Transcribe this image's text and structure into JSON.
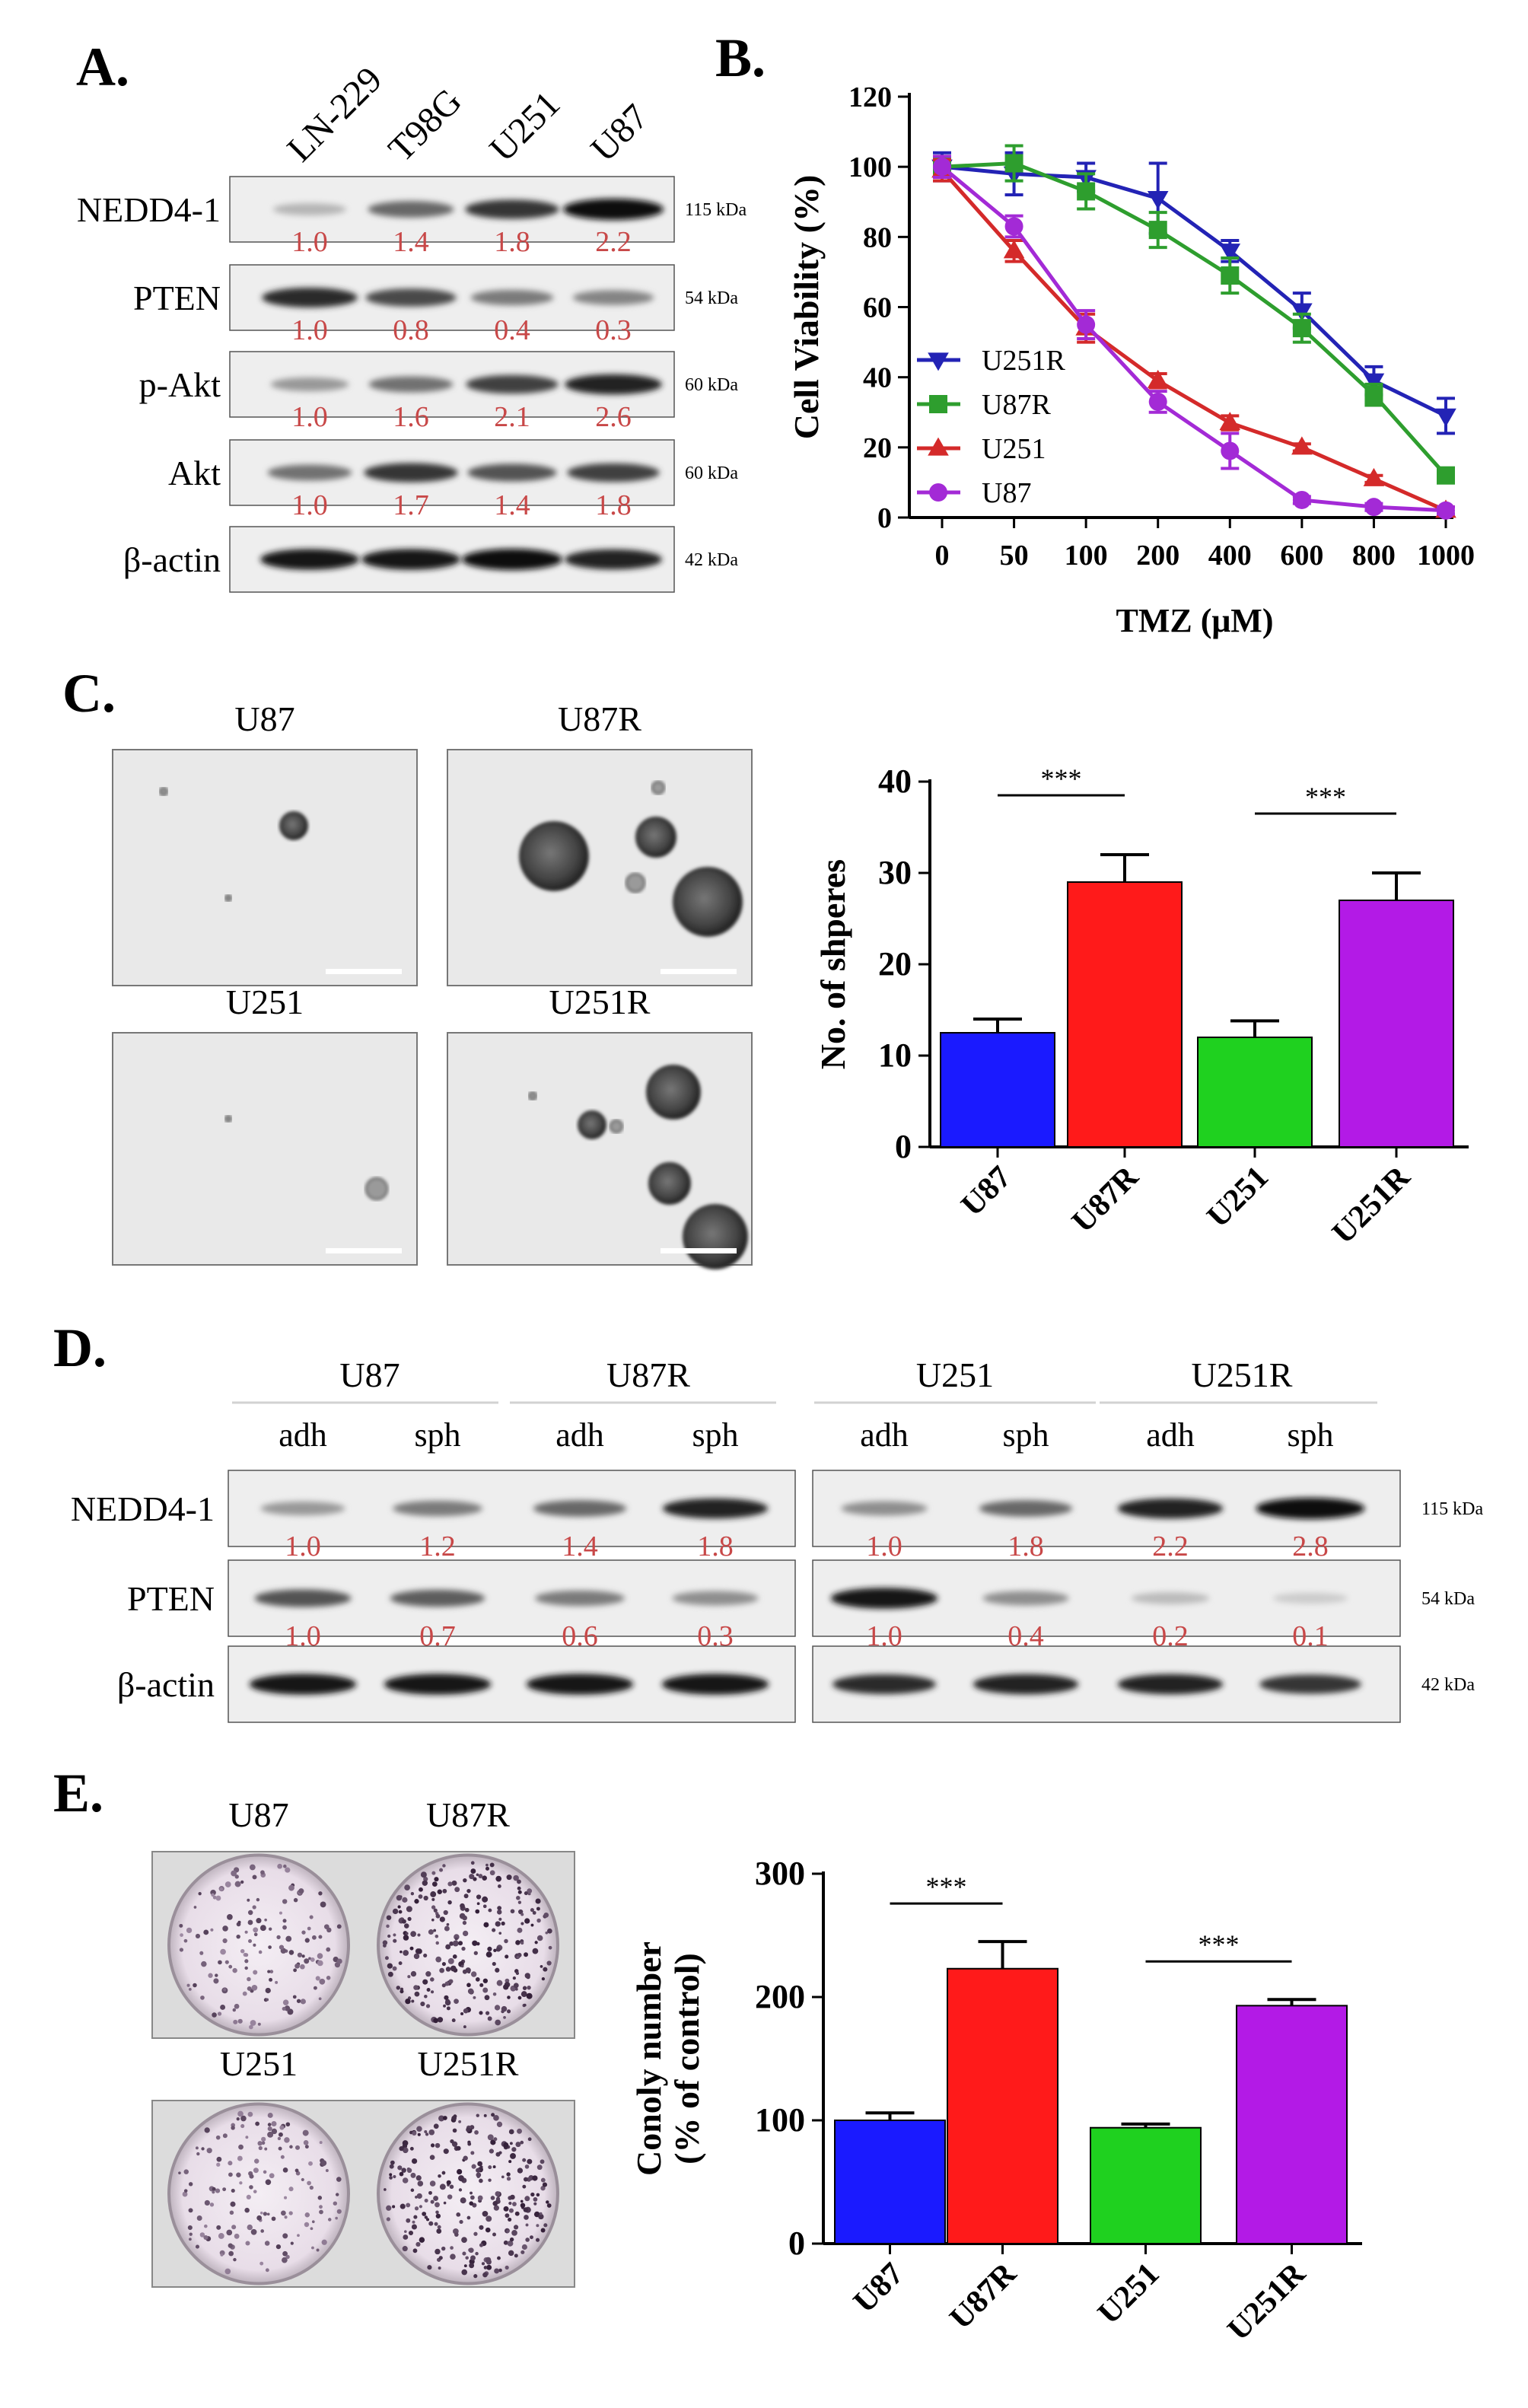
{
  "panels": {
    "A": {
      "letter": "A.",
      "lanes": [
        "LN-229",
        "T98G",
        "U251",
        "U87"
      ],
      "rows": [
        {
          "label": "NEDD4-1",
          "kda": "115 kDa",
          "band": [
            0.15,
            0.55,
            0.8,
            1.0
          ],
          "quant": [
            "1.0",
            "1.4",
            "1.8",
            "2.2"
          ]
        },
        {
          "label": "PTEN",
          "kda": "54 kDa",
          "band": [
            0.85,
            0.7,
            0.45,
            0.4
          ],
          "quant": [
            "1.0",
            "0.8",
            "0.4",
            "0.3"
          ]
        },
        {
          "label": "p-Akt",
          "kda": "60 kDa",
          "band": [
            0.3,
            0.5,
            0.75,
            0.9
          ],
          "quant": [
            "1.0",
            "1.6",
            "2.1",
            "2.6"
          ]
        },
        {
          "label": "Akt",
          "kda": "60 kDa",
          "band": [
            0.5,
            0.8,
            0.65,
            0.75
          ],
          "quant": [
            "1.0",
            "1.7",
            "1.4",
            "1.8"
          ]
        },
        {
          "label": "β-actin",
          "kda": "42 kDa",
          "band": [
            0.95,
            0.95,
            1.0,
            0.9
          ],
          "quant": []
        }
      ]
    },
    "B": {
      "letter": "B.",
      "chart_data": {
        "type": "line",
        "categories": [
          "0",
          "50",
          "100",
          "200",
          "400",
          "600",
          "800",
          "1000"
        ],
        "ylabel": "Cell Viability (%)",
        "xlabel": "TMZ (μM)",
        "ylim": [
          0,
          120
        ],
        "yticks": [
          0,
          20,
          40,
          60,
          80,
          100,
          120
        ],
        "legend_position": "bottom-left",
        "series": [
          {
            "name": "U251R",
            "color": "#2323b5",
            "marker": "triangle-down",
            "values": [
              100,
              98,
              97,
              91,
              76,
              59,
              39,
              29
            ],
            "errors": [
              4,
              6,
              4,
              10,
              3,
              5,
              4,
              5
            ]
          },
          {
            "name": "U87R",
            "color": "#2e9e2e",
            "marker": "square",
            "values": [
              100,
              101,
              93,
              82,
              69,
              54,
              35,
              12
            ],
            "errors": [
              3,
              5,
              5,
              5,
              5,
              4,
              3,
              2
            ]
          },
          {
            "name": "U251",
            "color": "#d42a2a",
            "marker": "triangle-up",
            "values": [
              99,
              76,
              54,
              39,
              27,
              20,
              11,
              2
            ],
            "errors": [
              3,
              3,
              4,
              2,
              2,
              1,
              1,
              1
            ]
          },
          {
            "name": "U87",
            "color": "#a32ad6",
            "marker": "circle",
            "values": [
              100,
              83,
              55,
              33,
              19,
              5,
              3,
              2
            ],
            "errors": [
              3,
              3,
              4,
              3,
              5,
              1,
              1,
              1
            ]
          }
        ]
      }
    },
    "C": {
      "letter": "C.",
      "images": [
        "U87",
        "U87R",
        "U251",
        "U251R"
      ],
      "chart_data": {
        "type": "bar",
        "categories": [
          "U87",
          "U87R",
          "U251",
          "U251R"
        ],
        "values": [
          12.5,
          29,
          12,
          27
        ],
        "errors": [
          1.5,
          3,
          1.8,
          3
        ],
        "colors": [
          "#1a1aff",
          "#ff1a1a",
          "#1fd11f",
          "#b31ae6"
        ],
        "ylabel": "No. of shperes",
        "ylim": [
          0,
          40
        ],
        "yticks": [
          0,
          10,
          20,
          30,
          40
        ],
        "significance": [
          {
            "pair": [
              0,
              1
            ],
            "label": "***"
          },
          {
            "pair": [
              2,
              3
            ],
            "label": "***"
          }
        ]
      }
    },
    "D": {
      "letter": "D.",
      "groups": [
        "U87",
        "U87R",
        "U251",
        "U251R"
      ],
      "conditions": [
        "adh",
        "sph",
        "adh",
        "sph",
        "adh",
        "sph",
        "adh",
        "sph"
      ],
      "rows": [
        {
          "label": "NEDD4-1",
          "kda": "115 kDa",
          "band": [
            0.3,
            0.45,
            0.55,
            0.9,
            0.35,
            0.55,
            0.9,
            1.0
          ],
          "quant": [
            "1.0",
            "1.2",
            "1.4",
            "1.8",
            "1.0",
            "1.8",
            "2.2",
            "2.8"
          ]
        },
        {
          "label": "PTEN",
          "kda": "54 kDa",
          "band": [
            0.65,
            0.6,
            0.45,
            0.35,
            0.95,
            0.35,
            0.12,
            0.03
          ],
          "quant": [
            "1.0",
            "0.7",
            "0.6",
            "0.3",
            "1.0",
            "0.4",
            "0.2",
            "0.1"
          ]
        },
        {
          "label": "β-actin",
          "kda": "42 kDa",
          "band": [
            0.95,
            0.95,
            0.95,
            0.95,
            0.85,
            0.9,
            0.9,
            0.8
          ],
          "quant": []
        }
      ]
    },
    "E": {
      "letter": "E.",
      "plates": [
        [
          "U87",
          "U87R"
        ],
        [
          "U251",
          "U251R"
        ]
      ],
      "chart_data": {
        "type": "bar",
        "categories": [
          "U87",
          "U87R",
          "U251",
          "U251R"
        ],
        "values": [
          100,
          223,
          94,
          193
        ],
        "errors": [
          6,
          22,
          3,
          5
        ],
        "colors": [
          "#1a1aff",
          "#ff1a1a",
          "#1fd11f",
          "#b31ae6"
        ],
        "ylabel": [
          "Conoly number",
          "(% of control)"
        ],
        "ylim": [
          0,
          300
        ],
        "yticks": [
          0,
          100,
          200,
          300
        ],
        "significance": [
          {
            "pair": [
              0,
              1
            ],
            "label": "***"
          },
          {
            "pair": [
              2,
              3
            ],
            "label": "***"
          }
        ]
      }
    }
  },
  "colors": {
    "quant_text": "#c84848"
  }
}
